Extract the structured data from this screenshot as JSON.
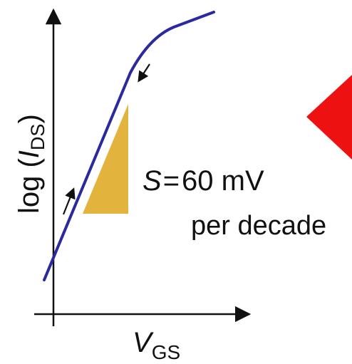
{
  "diagram": {
    "y_axis_label": {
      "prefix": "log (",
      "var": "I",
      "subscript": "DS",
      "suffix": ")"
    },
    "x_axis_label": {
      "var": "V",
      "subscript": "GS"
    },
    "slope_annotation": {
      "symbol": "S",
      "equals": "=",
      "value": "60 mV",
      "unit_line2": "per decade"
    },
    "colors": {
      "curve": "#2a2a9e",
      "triangle": "#e3b43d",
      "marker": "#ee1111",
      "axis": "#111111",
      "arrow": "#111111"
    },
    "marker_shape": "red-triangle-left"
  }
}
